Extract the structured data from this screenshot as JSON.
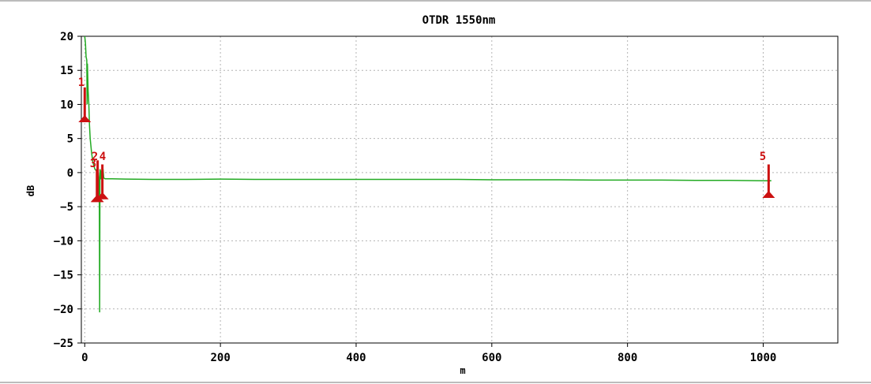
{
  "chart_data": {
    "type": "line",
    "title": "OTDR 1550nm",
    "xlabel": "m",
    "ylabel": "dB",
    "xlim": [
      -5,
      1110
    ],
    "ylim": [
      -25,
      20
    ],
    "xticks": [
      0,
      200,
      400,
      600,
      800,
      1000
    ],
    "yticks": [
      20,
      15,
      10,
      5,
      0,
      -5,
      -10,
      -15,
      -20,
      -25
    ],
    "grid": true,
    "colors": {
      "trace": "#22aa22",
      "event": "#cc1111",
      "grid": "#b4b4b4",
      "frame": "#000000"
    },
    "series": [
      {
        "x": [
          0,
          1,
          2,
          3,
          3.5,
          4,
          5,
          6,
          7,
          8,
          10,
          12,
          15,
          18,
          20,
          21,
          21.5,
          22,
          22.5,
          23,
          24,
          25,
          26,
          27,
          28,
          30,
          40,
          60,
          100,
          150,
          200,
          250,
          300,
          350,
          400,
          450,
          500,
          550,
          600,
          650,
          700,
          750,
          800,
          850,
          900,
          950,
          1000,
          1012
        ],
        "y": [
          20,
          19,
          17,
          16.5,
          10,
          16,
          12,
          10,
          7,
          5,
          3,
          1.5,
          0.5,
          0.2,
          0,
          -1,
          -4,
          -20.5,
          0.5,
          0.3,
          -1,
          0.3,
          -0.5,
          0.5,
          -0.8,
          -0.9,
          -0.9,
          -0.95,
          -1.0,
          -1.0,
          -0.95,
          -1.0,
          -1.0,
          -1.0,
          -1.0,
          -1.0,
          -1.0,
          -1.0,
          -1.05,
          -1.05,
          -1.05,
          -1.1,
          -1.1,
          -1.1,
          -1.15,
          -1.15,
          -1.2,
          -1.2
        ]
      }
    ],
    "events": [
      {
        "label": "1",
        "x": 0,
        "y_base": 7.5,
        "y_top": 12.5
      },
      {
        "label": "2",
        "x": 19,
        "y_base": -4.2,
        "y_top": 1.8
      },
      {
        "label": "3",
        "x": 18,
        "y_base": -4.2,
        "y_top": 0.5
      },
      {
        "label": "4",
        "x": 26,
        "y_base": -3.8,
        "y_top": 1.2
      },
      {
        "label": "5",
        "x": 1008,
        "y_base": -3.6,
        "y_top": 1.2
      }
    ]
  }
}
